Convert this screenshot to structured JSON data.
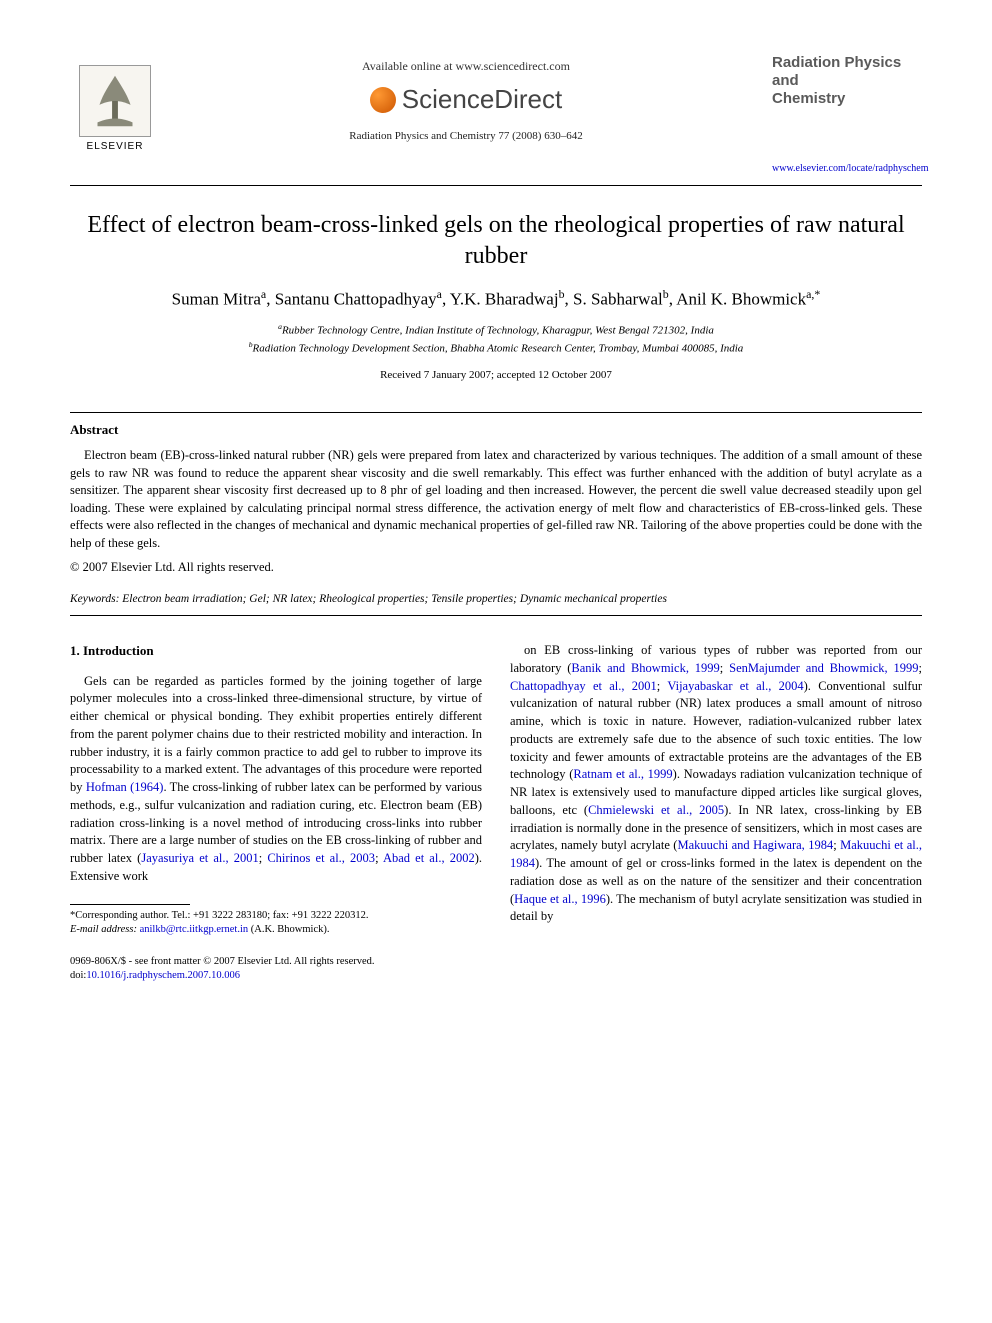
{
  "header": {
    "available_online": "Available online at www.sciencedirect.com",
    "sciencedirect": "ScienceDirect",
    "elsevier": "ELSEVIER",
    "journal_ref": "Radiation Physics and Chemistry 77 (2008) 630–642",
    "journal_title_line1": "Radiation Physics",
    "journal_title_line2": "and",
    "journal_title_line3": "Chemistry",
    "journal_link": "www.elsevier.com/locate/radphyschem"
  },
  "article": {
    "title": "Effect of electron beam-cross-linked gels on the rheological properties of raw natural rubber",
    "authors_html": "Suman Mitra<sup>a</sup>, Santanu Chattopadhyay<sup>a</sup>, Y.K. Bharadwaj<sup>b</sup>, S. Sabharwal<sup>b</sup>, Anil K. Bhowmick<sup>a,*</sup>",
    "affiliations": [
      {
        "label": "a",
        "text": "Rubber Technology Centre, Indian Institute of Technology, Kharagpur, West Bengal 721302, India"
      },
      {
        "label": "b",
        "text": "Radiation Technology Development Section, Bhabha Atomic Research Center, Trombay, Mumbai 400085, India"
      }
    ],
    "dates": "Received 7 January 2007; accepted 12 October 2007"
  },
  "abstract": {
    "heading": "Abstract",
    "body": "Electron beam (EB)-cross-linked natural rubber (NR) gels were prepared from latex and characterized by various techniques. The addition of a small amount of these gels to raw NR was found to reduce the apparent shear viscosity and die swell remarkably. This effect was further enhanced with the addition of butyl acrylate as a sensitizer. The apparent shear viscosity first decreased up to 8 phr of gel loading and then increased. However, the percent die swell value decreased steadily upon gel loading. These were explained by calculating principal normal stress difference, the activation energy of melt flow and characteristics of EB-cross-linked gels. These effects were also reflected in the changes of mechanical and dynamic mechanical properties of gel-filled raw NR. Tailoring of the above properties could be done with the help of these gels.",
    "copyright": "© 2007 Elsevier Ltd. All rights reserved."
  },
  "keywords": {
    "label": "Keywords:",
    "text": "Electron beam irradiation; Gel; NR latex; Rheological properties; Tensile properties; Dynamic mechanical properties"
  },
  "intro": {
    "heading": "1. Introduction",
    "col1": "Gels can be regarded as particles formed by the joining together of large polymer molecules into a cross-linked three-dimensional structure, by virtue of either chemical or physical bonding. They exhibit properties entirely different from the parent polymer chains due to their restricted mobility and interaction. In rubber industry, it is a fairly common practice to add gel to rubber to improve its processability to a marked extent. The advantages of this procedure were reported by <span class=\"cite\">Hofman (1964)</span>. The cross-linking of rubber latex can be performed by various methods, e.g., sulfur vulcanization and radiation curing, etc. Electron beam (EB) radiation cross-linking is a novel method of introducing cross-links into rubber matrix. There are a large number of studies on the EB cross-linking of rubber and rubber latex (<span class=\"cite\">Jayasuriya et al., 2001</span>; <span class=\"cite\">Chirinos et al., 2003</span>; <span class=\"cite\">Abad et al., 2002</span>). Extensive work",
    "col2": "on EB cross-linking of various types of rubber was reported from our laboratory (<span class=\"cite\">Banik and Bhowmick, 1999</span>; <span class=\"cite\">SenMajumder and Bhowmick, 1999</span>; <span class=\"cite\">Chattopadhyay et al., 2001</span>; <span class=\"cite\">Vijayabaskar et al., 2004</span>). Conventional sulfur vulcanization of natural rubber (NR) latex produces a small amount of nitroso amine, which is toxic in nature. However, radiation-vulcanized rubber latex products are extremely safe due to the absence of such toxic entities. The low toxicity and fewer amounts of extractable proteins are the advantages of the EB technology (<span class=\"cite\">Ratnam et al., 1999</span>). Nowadays radiation vulcanization technique of NR latex is extensively used to manufacture dipped articles like surgical gloves, balloons, etc (<span class=\"cite\">Chmielewski et al., 2005</span>). In NR latex, cross-linking by EB irradiation is normally done in the presence of sensitizers, which in most cases are acrylates, namely butyl acrylate (<span class=\"cite\">Makuuchi and Hagiwara, 1984</span>; <span class=\"cite\">Makuuchi et al., 1984</span>). The amount of gel or cross-links formed in the latex is dependent on the radiation dose as well as on the nature of the sensitizer and their concentration (<span class=\"cite\">Haque et al., 1996</span>). The mechanism of butyl acrylate sensitization was studied in detail by"
  },
  "footnote": {
    "corresponding": "*Corresponding author. Tel.: +91 3222 283180; fax: +91 3222 220312.",
    "email_label": "E-mail address:",
    "email": "anilkb@rtc.iitkgp.ernet.in",
    "email_author": "(A.K. Bhowmick)."
  },
  "footer": {
    "issn": "0969-806X/$ - see front matter © 2007 Elsevier Ltd. All rights reserved.",
    "doi_label": "doi:",
    "doi": "10.1016/j.radphyschem.2007.10.006"
  },
  "colors": {
    "text": "#000000",
    "link": "#0000cc",
    "logo_orange": "#e67700",
    "journal_gray": "#5a5a5a"
  }
}
